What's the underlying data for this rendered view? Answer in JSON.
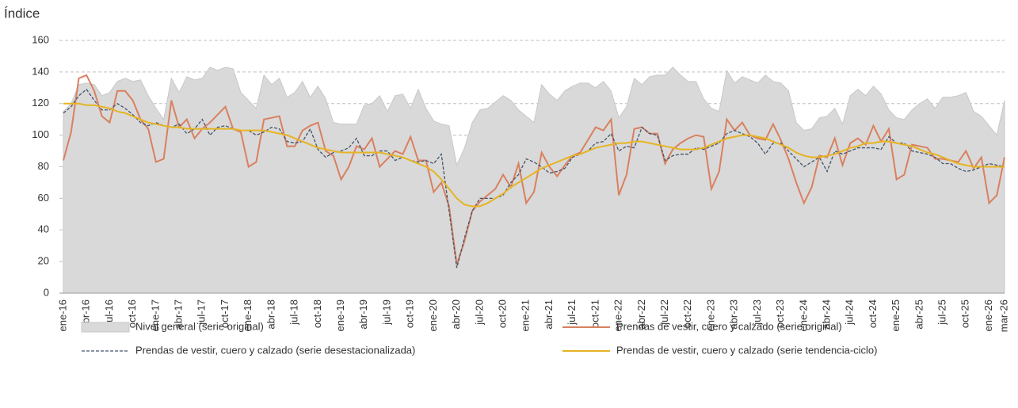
{
  "chart_data": {
    "type": "line",
    "y_label": "Índice",
    "categories": [
      "ene-16",
      null,
      null,
      "abr-16",
      null,
      null,
      "jul-16",
      null,
      null,
      "oct-16",
      null,
      null,
      "ene-17",
      null,
      null,
      "abr-17",
      null,
      null,
      "jul-17",
      null,
      null,
      "oct-17",
      null,
      null,
      "ene-18",
      null,
      null,
      "abr-18",
      null,
      null,
      "jul-18",
      null,
      null,
      "oct-18",
      null,
      null,
      "ene-19",
      null,
      null,
      "abr-19",
      null,
      null,
      "jul-19",
      null,
      null,
      "oct-19",
      null,
      null,
      "ene-20",
      null,
      null,
      "abr-20",
      null,
      null,
      "jul-20",
      null,
      null,
      "oct-20",
      null,
      null,
      "ene-21",
      null,
      null,
      "abr-21",
      null,
      null,
      "jul-21",
      null,
      null,
      "oct-21",
      null,
      null,
      "ene-22",
      null,
      null,
      "abr-22",
      null,
      null,
      "jul-22",
      null,
      null,
      "oct-22",
      null,
      null,
      "ene-23",
      null,
      null,
      "abr-23",
      null,
      null,
      "jul-23",
      null,
      null,
      "oct-23",
      null,
      null,
      "ene-24",
      null,
      null,
      "abr-24",
      null,
      null,
      "jul-24",
      null,
      null,
      "oct-24",
      null,
      null,
      "ene-25",
      null,
      null,
      "abr-25",
      null,
      null,
      "jul-25",
      null,
      null,
      "oct-25",
      null,
      null,
      "ene-26",
      null,
      "mar-26"
    ],
    "ylim": [
      0,
      160
    ],
    "yticks": [
      0,
      20,
      40,
      60,
      80,
      100,
      120,
      140,
      160
    ],
    "grid": true,
    "series": [
      {
        "name": "Nivel general (serie original)",
        "type": "area",
        "color": "#d9d9d9",
        "values": [
          115,
          120,
          132,
          133,
          132,
          125,
          127,
          134,
          136,
          134,
          135,
          125,
          117,
          110,
          136,
          127,
          137,
          135,
          136,
          143,
          141,
          143,
          142,
          127,
          122,
          117,
          138,
          132,
          136,
          124,
          127,
          134,
          124,
          131,
          123,
          108,
          107,
          107,
          107,
          119,
          120,
          125,
          115,
          125,
          126,
          117,
          129,
          117,
          109,
          107,
          106,
          81,
          92,
          108,
          116,
          117,
          121,
          125,
          122,
          116,
          112,
          108,
          132,
          126,
          122,
          128,
          131,
          133,
          133,
          130,
          134,
          128,
          111,
          118,
          136,
          132,
          137,
          138,
          138,
          143,
          138,
          134,
          134,
          123,
          117,
          115,
          141,
          133,
          137,
          135,
          133,
          138,
          134,
          133,
          128,
          108,
          103,
          104,
          111,
          112,
          117,
          107,
          125,
          129,
          125,
          131,
          126,
          116,
          111,
          110,
          116,
          120,
          123,
          117,
          124,
          124,
          125,
          127,
          115,
          112,
          106,
          100,
          122
        ]
      },
      {
        "name": "Prendas de vestir, cuero y calzado (serie original)",
        "type": "line",
        "color": "#d9805f",
        "values": [
          84,
          102,
          136,
          138,
          128,
          112,
          108,
          128,
          128,
          122,
          110,
          104,
          83,
          85,
          122,
          105,
          110,
          98,
          104,
          108,
          113,
          118,
          104,
          102,
          80,
          83,
          110,
          111,
          112,
          93,
          93,
          103,
          106,
          108,
          90,
          87,
          72,
          80,
          93,
          91,
          98,
          80,
          85,
          90,
          88,
          99,
          84,
          84,
          64,
          70,
          55,
          18,
          33,
          52,
          58,
          62,
          66,
          75,
          67,
          82,
          57,
          64,
          89,
          80,
          74,
          81,
          87,
          89,
          97,
          105,
          103,
          110,
          62,
          75,
          104,
          105,
          101,
          101,
          82,
          91,
          95,
          98,
          100,
          99,
          66,
          77,
          110,
          103,
          108,
          100,
          98,
          97,
          107,
          97,
          85,
          70,
          57,
          67,
          87,
          86,
          98,
          81,
          95,
          98,
          94,
          106,
          96,
          104,
          72,
          75,
          94,
          93,
          92,
          85,
          85,
          84,
          83,
          90,
          79,
          86,
          57,
          62,
          86
        ]
      },
      {
        "name": "Prendas de vestir, cuero y calzado (serie desestacionalizada)",
        "type": "line",
        "dash": true,
        "color": "#44546a",
        "values": [
          114,
          118,
          125,
          129,
          122,
          116,
          116,
          120,
          117,
          113,
          108,
          106,
          108,
          106,
          105,
          107,
          101,
          104,
          110,
          100,
          105,
          106,
          104,
          103,
          103,
          100,
          102,
          105,
          104,
          96,
          95,
          96,
          104,
          91,
          86,
          89,
          90,
          92,
          98,
          87,
          87,
          90,
          90,
          84,
          86,
          84,
          83,
          84,
          82,
          88,
          52,
          16,
          35,
          52,
          60,
          60,
          60,
          62,
          70,
          75,
          85,
          83,
          80,
          76,
          77,
          79,
          86,
          88,
          90,
          95,
          96,
          101,
          90,
          93,
          92,
          105,
          101,
          100,
          84,
          87,
          88,
          88,
          92,
          91,
          93,
          95,
          101,
          103,
          101,
          99,
          95,
          88,
          95,
          95,
          90,
          85,
          80,
          83,
          86,
          77,
          90,
          88,
          90,
          92,
          92,
          92,
          91,
          99,
          95,
          95,
          90,
          89,
          88,
          86,
          82,
          82,
          79,
          77,
          78,
          80,
          82,
          81,
          80
        ]
      },
      {
        "name": "Prendas de vestir, cuero y calzado (serie tendencia-ciclo)",
        "type": "line",
        "color": "#e6b422",
        "values": [
          120,
          120,
          120,
          119,
          119,
          118,
          117,
          115,
          114,
          112,
          110,
          108,
          107,
          106,
          105,
          105,
          104,
          104,
          104,
          104,
          104,
          104,
          104,
          103,
          103,
          103,
          103,
          102,
          101,
          100,
          98,
          96,
          94,
          92,
          91,
          90,
          89,
          89,
          89,
          89,
          89,
          89,
          88,
          87,
          86,
          84,
          82,
          80,
          77,
          72,
          66,
          60,
          56,
          55,
          55,
          57,
          60,
          63,
          67,
          70,
          73,
          76,
          79,
          81,
          83,
          85,
          87,
          88,
          90,
          92,
          93,
          94,
          95,
          95,
          96,
          96,
          95,
          94,
          93,
          92,
          91,
          91,
          91,
          92,
          94,
          96,
          98,
          99,
          100,
          100,
          99,
          98,
          96,
          94,
          92,
          89,
          87,
          86,
          86,
          87,
          88,
          90,
          92,
          93,
          95,
          95,
          96,
          96,
          95,
          94,
          93,
          91,
          89,
          88,
          86,
          84,
          82,
          81,
          80,
          80,
          80,
          80,
          80
        ]
      }
    ]
  }
}
